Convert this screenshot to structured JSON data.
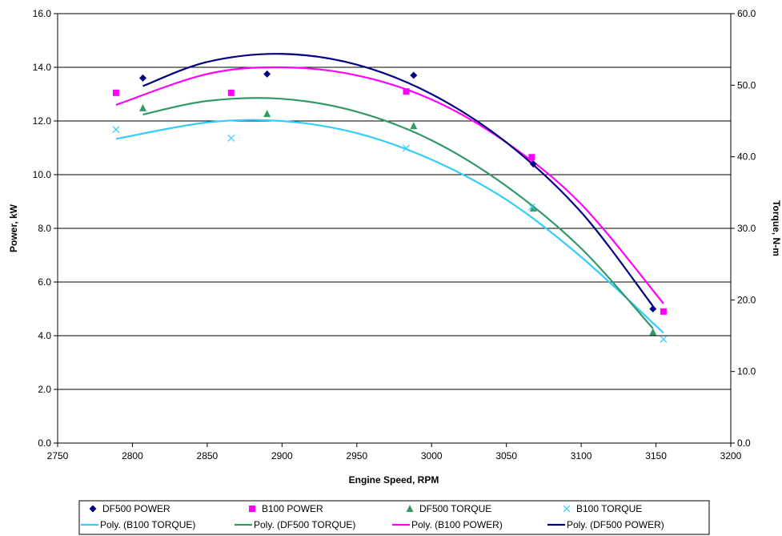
{
  "chart_data": {
    "type": "scatter",
    "xlabel": "Engine Speed, RPM",
    "ylabel": "Power, kW",
    "y2label": "Torque, N-m",
    "xlim": [
      2750,
      3200
    ],
    "ylim": [
      0,
      16
    ],
    "y2lim": [
      0,
      60
    ],
    "xticks": [
      "2750",
      "2800",
      "2850",
      "2900",
      "2950",
      "3000",
      "3050",
      "3100",
      "3150",
      "3200"
    ],
    "yticks": [
      "0.0",
      "2.0",
      "4.0",
      "6.0",
      "8.0",
      "10.0",
      "12.0",
      "14.0",
      "16.0"
    ],
    "y2ticks": [
      "0.0",
      "10.0",
      "20.0",
      "30.0",
      "40.0",
      "50.0",
      "60.0"
    ],
    "grid": "horizontal",
    "legend_position": "bottom",
    "series": [
      {
        "name": "DF500 POWER",
        "axis": "left",
        "marker": "diamond",
        "color": "#000080",
        "x": [
          2807,
          2890,
          2988,
          3068,
          3148
        ],
        "y": [
          13.6,
          13.75,
          13.7,
          10.4,
          5.0
        ]
      },
      {
        "name": "B100 POWER",
        "axis": "left",
        "marker": "square",
        "color": "#ff00ff",
        "x": [
          2789,
          2866,
          2983,
          3067,
          3155
        ],
        "y": [
          13.05,
          13.05,
          13.1,
          10.65,
          4.9
        ]
      },
      {
        "name": "DF500 TORQUE",
        "axis": "right",
        "marker": "triangle",
        "color": "#339966",
        "x": [
          2807,
          2890,
          2988,
          3068,
          3148
        ],
        "y": [
          46.8,
          46.0,
          44.3,
          32.8,
          15.5
        ]
      },
      {
        "name": "B100 TORQUE",
        "axis": "right",
        "marker": "x",
        "color": "#33ccff",
        "x": [
          2789,
          2866,
          2983,
          3067,
          3155
        ],
        "y": [
          43.8,
          42.6,
          41.2,
          33.0,
          14.5
        ]
      }
    ],
    "trendlines": [
      {
        "name": "Poly. (B100 TORQUE)",
        "axis": "right",
        "color": "#33ccff",
        "x": [
          2789,
          2850,
          2900,
          2950,
          3000,
          3050,
          3100,
          3155
        ],
        "y": [
          42.5,
          44.8,
          45.0,
          43.3,
          39.6,
          34.0,
          26.0,
          15.4
        ]
      },
      {
        "name": "Poly. (DF500 TORQUE)",
        "axis": "right",
        "color": "#339966",
        "x": [
          2807,
          2850,
          2900,
          2950,
          3000,
          3050,
          3100,
          3148
        ],
        "y": [
          45.9,
          47.8,
          48.1,
          46.3,
          42.3,
          35.9,
          27.2,
          16.0
        ]
      },
      {
        "name": "Poly. (B100 POWER)",
        "axis": "left",
        "color": "#ff00ff",
        "x": [
          2789,
          2850,
          2900,
          2950,
          3000,
          3050,
          3100,
          3155
        ],
        "y": [
          12.6,
          13.75,
          14.0,
          13.7,
          12.8,
          11.2,
          8.9,
          5.2
        ]
      },
      {
        "name": "Poly. (DF500 POWER)",
        "axis": "left",
        "color": "#000080",
        "x": [
          2807,
          2850,
          2900,
          2950,
          3000,
          3050,
          3100,
          3148
        ],
        "y": [
          13.3,
          14.2,
          14.5,
          14.1,
          13.0,
          11.2,
          8.6,
          5.1
        ]
      }
    ]
  }
}
